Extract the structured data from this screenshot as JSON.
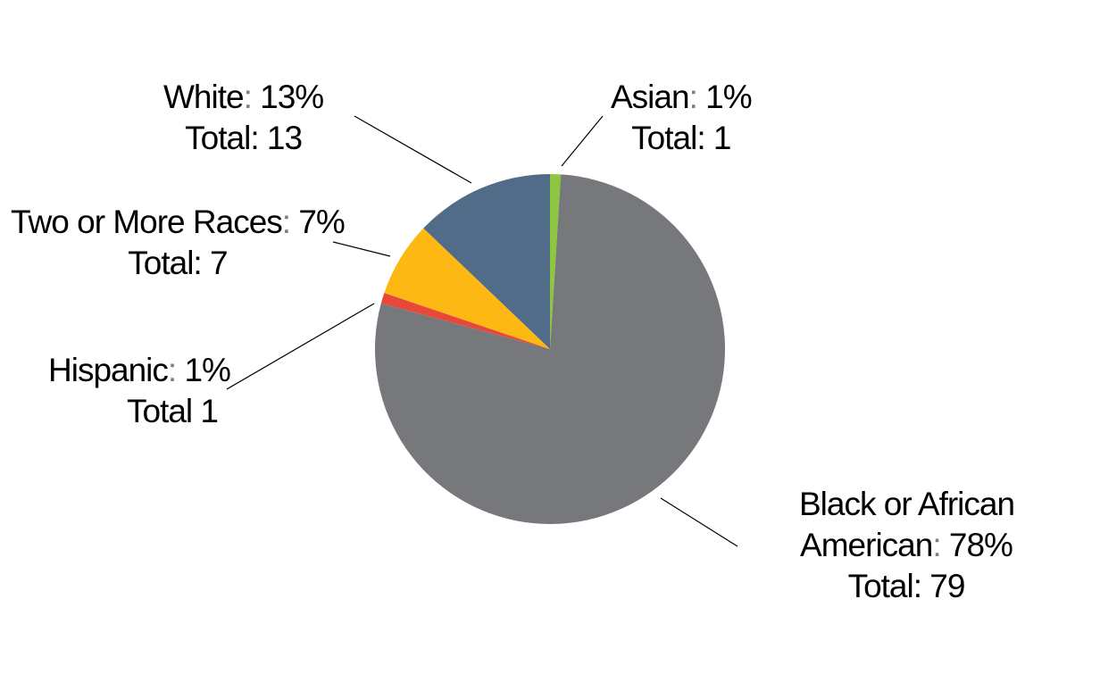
{
  "chart_data": {
    "type": "pie",
    "title": "",
    "slices": [
      {
        "name": "Asian",
        "percent": "1%",
        "total_label": "Total",
        "total": 1,
        "value": 1,
        "color": "#8dc63f"
      },
      {
        "name": "Black or African American",
        "name_line1": "Black or African",
        "name_line2": "American",
        "percent": "78%",
        "total_label": "Total",
        "total": 79,
        "value": 79,
        "color": "#77787b"
      },
      {
        "name": "Hispanic",
        "percent": "1%",
        "total_label": "Total",
        "total": 1,
        "value": 1,
        "color": "#e8483a"
      },
      {
        "name": "Two or More Races",
        "percent": "7%",
        "total_label": "Total",
        "total": 7,
        "value": 7,
        "color": "#fdb813"
      },
      {
        "name": "White",
        "percent": "13%",
        "total_label": "Total",
        "total": 13,
        "value": 13,
        "color": "#516c88"
      }
    ]
  }
}
